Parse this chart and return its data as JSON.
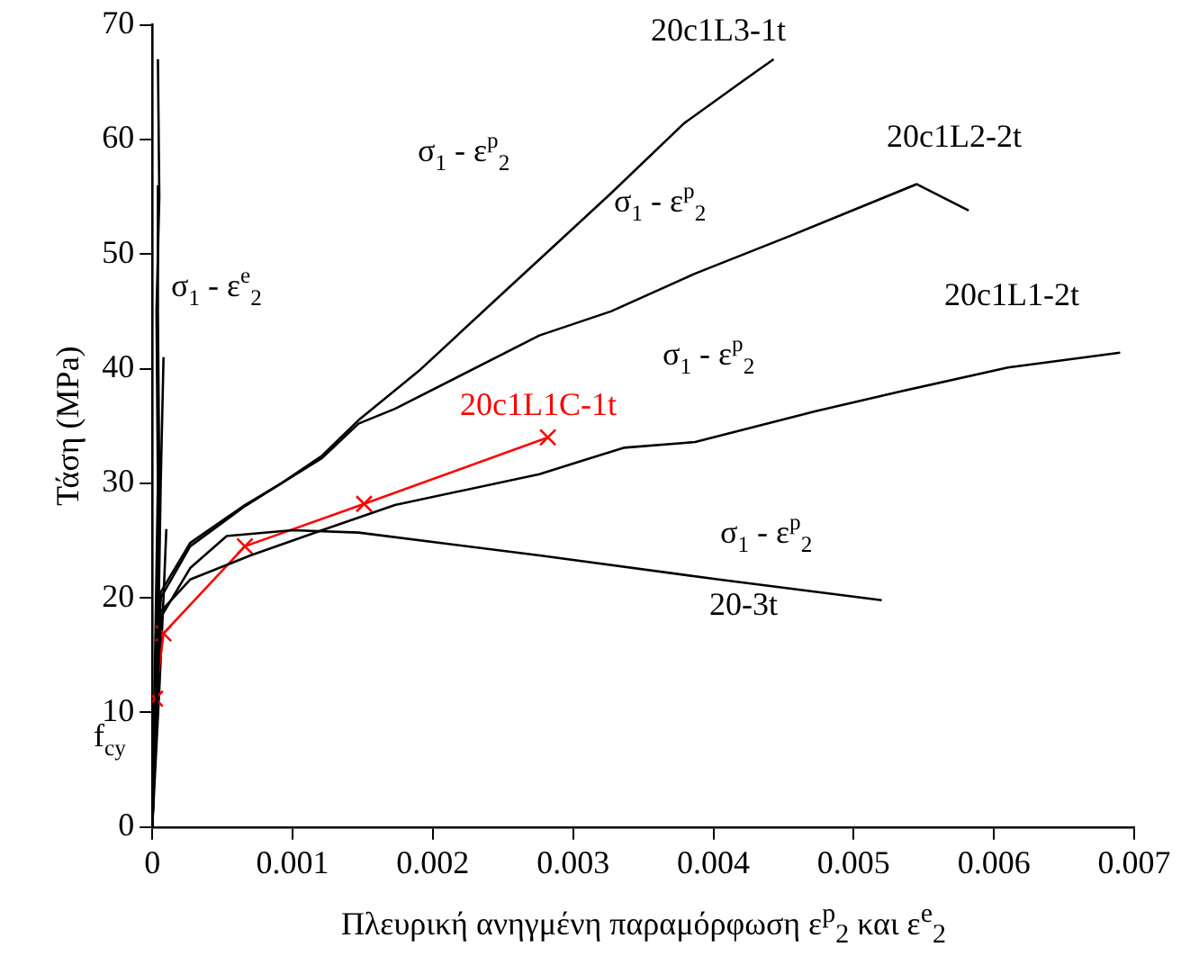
{
  "chart_data": {
    "type": "line",
    "xlabel": "Πλευρική ανηγμένη παραμόρφωση ε$^{p}$$_{2}$ και ε$^{e}$$_{2}$",
    "ylabel": "Τάση (MPa)",
    "xlim": [
      0,
      0.007
    ],
    "xticks": [
      0,
      0.001,
      0.002,
      0.003,
      0.004,
      0.005,
      0.006,
      0.007
    ],
    "ylim": [
      0,
      70
    ],
    "yticks": [
      0,
      10,
      20,
      30,
      40,
      50,
      60,
      70
    ],
    "grid": false,
    "legend": false,
    "line_style": "solid",
    "marker": "none",
    "series": [
      {
        "name": "20c1L3-1t",
        "color": "#000000",
        "x": [
          0,
          3e-05,
          6e-05,
          0.00027,
          0.00066,
          0.00092,
          0.00121,
          0.00147,
          0.0019,
          0.0025,
          0.00289,
          0.00327,
          0.00379,
          0.00421,
          0.00443
        ],
        "values": [
          0,
          12,
          20.5,
          24.8,
          28.1,
          30,
          32.4,
          35.5,
          39.8,
          46.6,
          51,
          55.3,
          61.4,
          65.1,
          67
        ]
      },
      {
        "name": "20c1L2-2t",
        "color": "#000000",
        "x": [
          0,
          3e-05,
          6e-05,
          0.00027,
          0.00066,
          0.00092,
          0.00121,
          0.00147,
          0.00173,
          0.00276,
          0.00327,
          0.00387,
          0.00455,
          0.00545,
          0.00582
        ],
        "values": [
          0,
          12,
          20,
          24.5,
          28,
          30,
          32.2,
          35.2,
          36.5,
          42.9,
          45,
          48.3,
          51.6,
          56.1,
          53.8
        ]
      },
      {
        "name": "20c1L1-2t",
        "color": "#000000",
        "x": [
          0,
          3e-05,
          6e-05,
          0.00027,
          0.0007,
          0.00121,
          0.00173,
          0.00276,
          0.00336,
          0.00387,
          0.00473,
          0.00533,
          0.0061,
          0.0069
        ],
        "values": [
          0,
          11,
          18.8,
          21.6,
          23.7,
          25.9,
          28.1,
          30.8,
          33.1,
          33.6,
          36.3,
          38,
          40.1,
          41.4
        ]
      },
      {
        "name": "20-3t",
        "color": "#000000",
        "x": [
          0,
          3e-05,
          6e-05,
          0.00027,
          0.00053,
          0.001,
          0.00147,
          0.00276,
          0.00404,
          0.0052
        ],
        "values": [
          0,
          10,
          18.3,
          22.6,
          25.4,
          25.9,
          25.7,
          23.7,
          21.6,
          19.8
        ]
      },
      {
        "name": "20c1L1C-1t",
        "color": "#ff0000",
        "marker": "cross",
        "x": [
          2e-05,
          8e-05,
          0.00066,
          0.00151,
          0.00282
        ],
        "values": [
          11.2,
          16.9,
          24.5,
          28.2,
          34
        ]
      },
      {
        "color": "#000000",
        "x": [
          0,
          2e-05,
          4e-05,
          3e-05,
          5e-05,
          4e-05
        ],
        "values": [
          0,
          15,
          30,
          45,
          55,
          67
        ]
      },
      {
        "color": "#000000",
        "x": [
          0,
          3e-05,
          5e-05,
          4e-05,
          4e-05
        ],
        "values": [
          0,
          15,
          30,
          45,
          56
        ]
      },
      {
        "color": "#000000",
        "x": [
          0,
          4e-05,
          6e-05,
          8e-05
        ],
        "values": [
          0,
          15,
          30,
          41
        ]
      },
      {
        "color": "#000000",
        "x": [
          0,
          5e-05,
          8e-05,
          0.0001
        ],
        "values": [
          0,
          12,
          20,
          26
        ]
      }
    ],
    "annotations": [
      "σ$_{1}$ - ε$^{e}$$_{2}$",
      "σ$_{1}$ - ε$^{p}$$_{2}$",
      "σ$_{1}$ - ε$^{p}$$_{2}$",
      "σ$_{1}$ - ε$^{p}$$_{2}$",
      "σ$_{1}$ - ε$^{p}$$_{2}$",
      "f$_{cy}$"
    ]
  }
}
